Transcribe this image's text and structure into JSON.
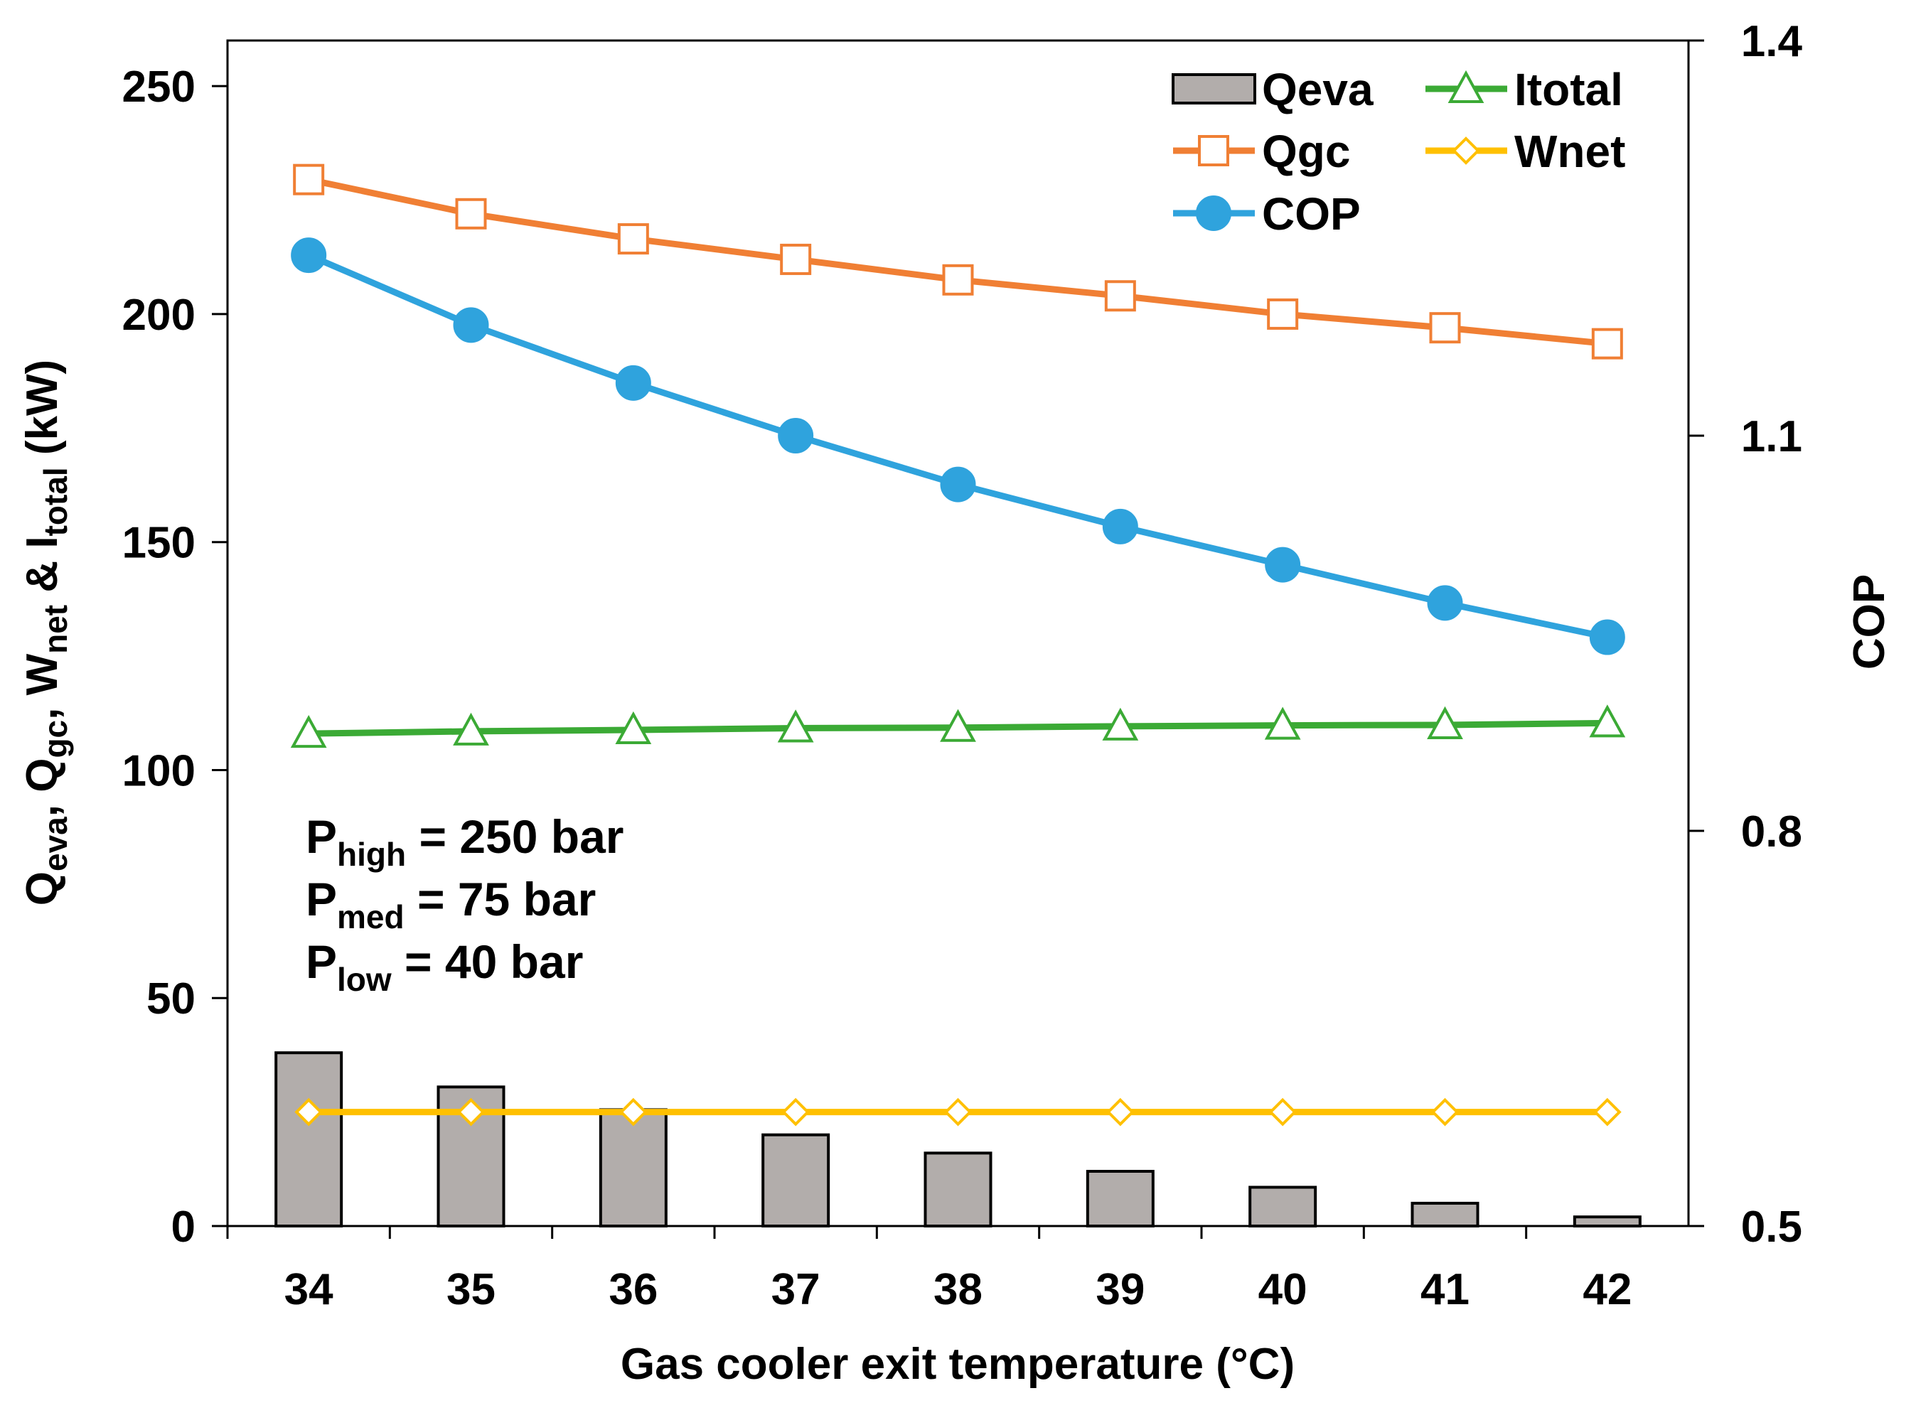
{
  "chart_data": {
    "type": "bar+line",
    "xlabel": "Gas cooler exit temperature (°C)",
    "categories": [
      "34",
      "35",
      "36",
      "37",
      "38",
      "39",
      "40",
      "41",
      "42"
    ],
    "y_left": {
      "label": {
        "q": "Q",
        "eva_sub": "eva",
        "sep1": ",  ",
        "q2": "Q",
        "gc_sub": "gc",
        "sep2": ",  ",
        "w": "W",
        "net_sub": "net",
        "amp": " & ",
        "i": "I",
        "total_sub": "total",
        "unit": " (kW)"
      },
      "range": [
        0,
        260
      ],
      "ticks": [
        "0",
        "50",
        "100",
        "150",
        "200",
        "250"
      ]
    },
    "y_right": {
      "label": "COP",
      "range": [
        0.5,
        1.4
      ],
      "ticks": [
        "0.5",
        "0.8",
        "1.1",
        "1.4"
      ]
    },
    "series": [
      {
        "name": "Qeva",
        "type": "bar",
        "axis": "left",
        "color": "#B2ADAB",
        "values": [
          38,
          30.5,
          25.5,
          20,
          16,
          12,
          8.5,
          5,
          2
        ]
      },
      {
        "name": "Qgc",
        "type": "line",
        "axis": "left",
        "color": "#F07F34",
        "marker": "square-open",
        "values": [
          229.5,
          222,
          216.5,
          212,
          207.5,
          204,
          200,
          197,
          193.5
        ]
      },
      {
        "name": "COP",
        "type": "line",
        "axis": "right",
        "color": "#2FA3DD",
        "marker": "circle-filled",
        "values": [
          1.237,
          1.184,
          1.14,
          1.1,
          1.063,
          1.031,
          1.002,
          0.973,
          0.947
        ]
      },
      {
        "name": "Itotal",
        "type": "line",
        "axis": "left",
        "color": "#3BAA35",
        "marker": "triangle-open",
        "values": [
          108,
          108.5,
          108.8,
          109.2,
          109.3,
          109.6,
          109.8,
          109.9,
          110.3
        ]
      },
      {
        "name": "Wnet",
        "type": "line",
        "axis": "left",
        "color": "#FFC000",
        "marker": "diamond-open",
        "values": [
          25,
          25,
          25,
          25,
          25,
          25,
          25,
          25,
          25
        ]
      }
    ],
    "legend_order": [
      "Qeva",
      "Itotal",
      "Qgc",
      "Wnet",
      "COP"
    ],
    "legend_position": "top-right",
    "annotations": [
      {
        "prefix": "P",
        "sub": "high",
        "text": " = 250 bar"
      },
      {
        "prefix": "P",
        "sub": "med",
        "text": " = 75 bar"
      },
      {
        "prefix": "P",
        "sub": "low",
        "text": " = 40 bar"
      }
    ]
  }
}
